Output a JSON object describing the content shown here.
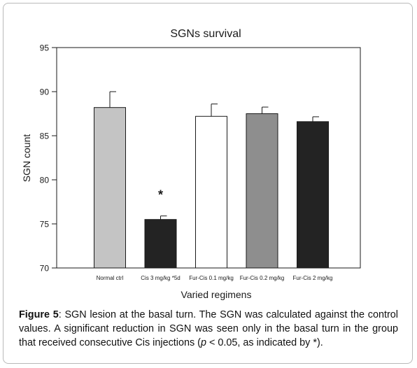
{
  "chart_data": {
    "type": "bar",
    "title": "SGNs survival",
    "xlabel": "Varied regimens",
    "ylabel": "SGN count",
    "ylim": [
      70,
      95
    ],
    "yticks": [
      70,
      75,
      80,
      85,
      90,
      95
    ],
    "categories": [
      "Normal ctrl",
      "Cis 3 mg/kg *5d",
      "Fur-Cis 0.1 mg/kg",
      "Fur-Cis 0.2 mg/kg",
      "Fur-Cis 2 mg/kg"
    ],
    "values": [
      88.2,
      75.5,
      87.2,
      87.5,
      86.6
    ],
    "errors": [
      1.8,
      0.4,
      1.4,
      0.75,
      0.55
    ],
    "colors": [
      "#c4c4c4",
      "#232323",
      "#ffffff",
      "#8e8e8e",
      "#232323"
    ],
    "significance": [
      "",
      "*",
      "",
      "",
      ""
    ],
    "grid": false,
    "legend": "none"
  },
  "caption": {
    "label": "Figure 5",
    "text_before_p": ": SGN lesion at the basal turn. The SGN was calculated against the control values. A significant reduction in SGN was seen only in the basal turn in the group that received consecutive Cis injections (",
    "p_symbol": "p",
    "text_after_p": " < 0.05, as indicated by *)."
  }
}
